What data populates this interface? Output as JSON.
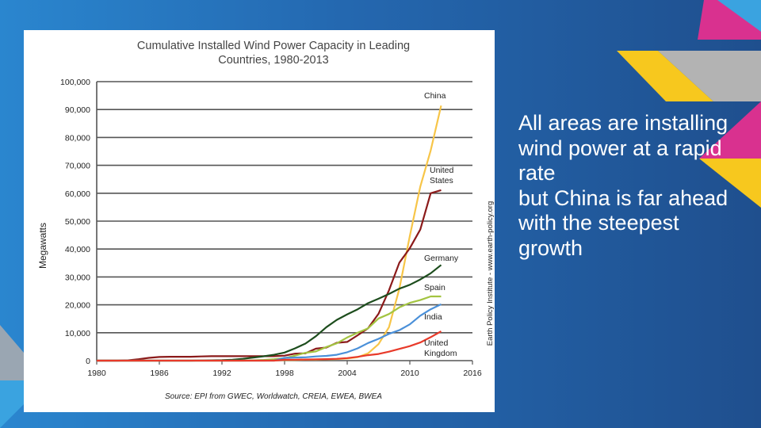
{
  "slide": {
    "body_text": "All areas are installing wind power at a rapid rate\nbut China is far ahead with the steepest growth"
  },
  "colors": {
    "background": "#2468b0",
    "accent_pink": "#d9318f",
    "accent_yellow": "#f7c81e",
    "accent_grey": "#b3b3b3",
    "accent_light_blue": "#3aa3e0"
  },
  "chart_data": {
    "type": "line",
    "title_lines": [
      "Cumulative Installed Wind Power Capacity in Leading",
      "Countries, 1980-2013"
    ],
    "xlabel": "",
    "ylabel": "Megawatts",
    "xlim": [
      1980,
      2016
    ],
    "ylim": [
      0,
      100000
    ],
    "x_ticks": [
      1980,
      1986,
      1992,
      1998,
      2004,
      2010,
      2016
    ],
    "y_ticks": [
      0,
      10000,
      20000,
      30000,
      40000,
      50000,
      60000,
      70000,
      80000,
      90000,
      100000
    ],
    "y_tick_labels": [
      "0",
      "10,000",
      "20,000",
      "30,000",
      "40,000",
      "50,000",
      "60,000",
      "70,000",
      "80,000",
      "90,000",
      "100,000"
    ],
    "grid": "horizontal",
    "source": "Source: EPI from GWEC, Worldwatch, CREIA, EWEA, BWEA",
    "credit": "Earth Policy Institute - www.earth-policy.org",
    "x": [
      1980,
      1981,
      1982,
      1983,
      1984,
      1985,
      1986,
      1987,
      1988,
      1989,
      1990,
      1991,
      1992,
      1993,
      1994,
      1995,
      1996,
      1997,
      1998,
      1999,
      2000,
      2001,
      2002,
      2003,
      2004,
      2005,
      2006,
      2007,
      2008,
      2009,
      2010,
      2011,
      2012,
      2013
    ],
    "series": [
      {
        "name": "China",
        "label_lines": [
          "China"
        ],
        "color": "#f7c548",
        "values": [
          0,
          0,
          0,
          0,
          0,
          0,
          0,
          0,
          0,
          0,
          0,
          0,
          0,
          0,
          0,
          0,
          0,
          100,
          200,
          260,
          340,
          400,
          470,
          570,
          760,
          1260,
          2600,
          5900,
          12000,
          25800,
          44700,
          62400,
          75300,
          91400
        ]
      },
      {
        "name": "United States",
        "label_lines": [
          "United",
          "States"
        ],
        "color": "#8b1a1a",
        "values": [
          0,
          0,
          10,
          100,
          500,
          1000,
          1300,
          1400,
          1400,
          1400,
          1500,
          1600,
          1600,
          1600,
          1600,
          1600,
          1600,
          1600,
          1800,
          2500,
          2600,
          4300,
          4700,
          6400,
          6700,
          9100,
          11600,
          16800,
          25200,
          35100,
          40300,
          47000,
          60000,
          61100
        ]
      },
      {
        "name": "Germany",
        "label_lines": [
          "Germany"
        ],
        "color": "#1d4d1d",
        "values": [
          0,
          0,
          0,
          0,
          0,
          0,
          0,
          0,
          0,
          0,
          60,
          100,
          180,
          330,
          640,
          1100,
          1550,
          2100,
          2900,
          4400,
          6100,
          8750,
          12000,
          14600,
          16600,
          18400,
          20600,
          22200,
          23900,
          25800,
          27200,
          29100,
          31300,
          34300
        ]
      },
      {
        "name": "Spain",
        "label_lines": [
          "Spain"
        ],
        "color": "#a3c441",
        "values": [
          0,
          0,
          0,
          0,
          0,
          0,
          0,
          0,
          0,
          0,
          0,
          0,
          0,
          0,
          0,
          100,
          250,
          500,
          880,
          1800,
          2800,
          3300,
          4900,
          6200,
          8300,
          10000,
          11600,
          15100,
          16700,
          19100,
          20700,
          21700,
          23000,
          23000
        ]
      },
      {
        "name": "India",
        "label_lines": [
          "India"
        ],
        "color": "#4a90d9",
        "values": [
          0,
          0,
          0,
          0,
          0,
          0,
          0,
          0,
          0,
          0,
          0,
          0,
          0,
          0,
          0,
          0,
          0,
          0,
          1000,
          1100,
          1200,
          1500,
          1700,
          2100,
          3000,
          4400,
          6300,
          7800,
          9600,
          10900,
          13000,
          16100,
          18400,
          20200
        ]
      },
      {
        "name": "United Kingdom",
        "label_lines": [
          "United",
          "Kingdom"
        ],
        "color": "#e83a2a",
        "values": [
          0,
          0,
          0,
          0,
          0,
          0,
          0,
          0,
          0,
          0,
          0,
          0,
          0,
          0,
          0,
          0,
          0,
          0,
          300,
          350,
          400,
          470,
          530,
          650,
          900,
          1350,
          1960,
          2400,
          3200,
          4200,
          5200,
          6500,
          8400,
          10500
        ]
      }
    ]
  }
}
